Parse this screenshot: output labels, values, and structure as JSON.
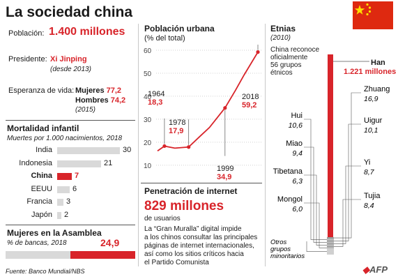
{
  "title": "La sociedad china",
  "flag_colors": {
    "red": "#de2910",
    "yellow": "#ffde00"
  },
  "accent": "#d8242a",
  "poblacion": {
    "label": "Población:",
    "value": "1.400 millones"
  },
  "presidente": {
    "label": "Presidente:",
    "name": "Xi Jinping",
    "since": "(desde 2013)"
  },
  "esperanza": {
    "label": "Esperanza de vida:",
    "mujeres_label": "Mujeres",
    "mujeres_value": "77,2",
    "hombres_label": "Hombres",
    "hombres_value": "74,2",
    "year": "(2015)"
  },
  "mortalidad": {
    "title": "Mortalidad infantil",
    "subtitle": "Muertes por 1.000 nacimientos, 2018",
    "chart_data": {
      "type": "bar",
      "categories": [
        "India",
        "Indonesia",
        "China",
        "EEUU",
        "Francia",
        "Japón"
      ],
      "values": [
        30,
        21,
        7,
        6,
        3,
        2
      ],
      "value_labels": [
        "30",
        "21",
        "7",
        "6",
        "3",
        "2"
      ],
      "highlight": "China"
    }
  },
  "asamblea": {
    "title": "Mujeres en la Asamblea",
    "subtitle": "% de bancas, 2018",
    "value": 24.9,
    "value_label": "24,9"
  },
  "urbana": {
    "title": "Población urbana",
    "subtitle": "(% del total)",
    "chart_data": {
      "type": "line",
      "x": [
        1960,
        1964,
        1970,
        1978,
        1985,
        1990,
        1999,
        2005,
        2010,
        2018
      ],
      "y": [
        16.2,
        18.3,
        17.4,
        17.9,
        22.9,
        26.4,
        34.9,
        42.5,
        49.2,
        59.2
      ],
      "xlim": [
        1960,
        2018
      ],
      "ylim": [
        0,
        60
      ],
      "yticks": [
        10,
        20,
        30,
        40,
        50,
        60
      ],
      "ytick_labels": [
        "10",
        "20",
        "30",
        "40",
        "50",
        "60"
      ],
      "annotations": [
        {
          "year": "1964",
          "value": "18,3",
          "x": 1964,
          "y": 18.3
        },
        {
          "year": "1978",
          "value": "17,9",
          "x": 1978,
          "y": 17.9
        },
        {
          "year": "1999",
          "value": "34,9",
          "x": 1999,
          "y": 34.9
        },
        {
          "year": "2018",
          "value": "59,2",
          "x": 2018,
          "y": 59.2
        }
      ]
    }
  },
  "internet": {
    "title": "Penetración de internet",
    "value": "829 millones",
    "unit": "de usuarios",
    "desc": [
      "La “Gran Muralla” digital impide",
      "a los chinos consultar las principales",
      "páginas de internet internacionales,",
      "así como los sitios críticos hacia",
      "el Partido Comunista"
    ]
  },
  "etnias": {
    "title": "Etnias",
    "year": "(2010)",
    "note": [
      "China reconoce",
      "oficialmente",
      "56 grupos",
      "étnicos"
    ],
    "han": {
      "name": "Han",
      "value": "1.221 millones"
    },
    "left": [
      {
        "name": "Hui",
        "value": "10,6"
      },
      {
        "name": "Miao",
        "value": "9,4"
      },
      {
        "name": "Tibetana",
        "value": "6,3"
      },
      {
        "name": "Mongol",
        "value": "6,0"
      }
    ],
    "right": [
      {
        "name": "Zhuang",
        "value": "16,9"
      },
      {
        "name": "Uigur",
        "value": "10,1"
      },
      {
        "name": "Yi",
        "value": "8,7"
      },
      {
        "name": "Tujia",
        "value": "8,4"
      }
    ],
    "otros": [
      "Otros",
      "grupos",
      "minoritarios"
    ]
  },
  "fuente": "Fuente: Banco Mundial/NBS",
  "logo": "AFP"
}
